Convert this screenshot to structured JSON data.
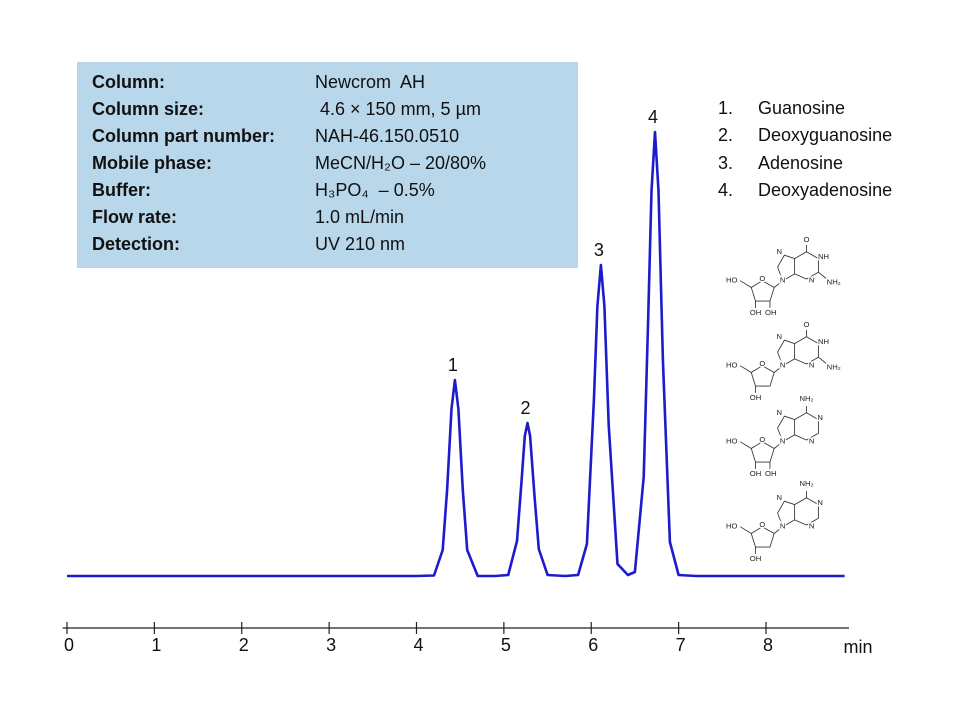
{
  "chart_data": {
    "type": "line",
    "xlabel": "min",
    "x": [
      0,
      1,
      2,
      3,
      4,
      4.2,
      4.3,
      4.35,
      4.4,
      4.44,
      4.48,
      4.53,
      4.58,
      4.7,
      4.9,
      5.05,
      5.15,
      5.2,
      5.24,
      5.27,
      5.3,
      5.35,
      5.4,
      5.5,
      5.7,
      5.85,
      5.95,
      6.03,
      6.07,
      6.11,
      6.15,
      6.2,
      6.3,
      6.42,
      6.5,
      6.6,
      6.65,
      6.69,
      6.73,
      6.77,
      6.82,
      6.9,
      7.0,
      7.2,
      7.5,
      8,
      8.9
    ],
    "values": [
      0,
      0,
      0,
      0,
      0,
      0.5,
      26,
      86,
      167,
      196,
      167,
      86,
      26,
      0,
      0,
      1,
      35,
      93,
      140,
      153,
      140,
      80,
      27,
      1,
      0,
      1,
      32,
      176,
      270,
      311,
      270,
      151,
      12,
      1,
      4,
      99,
      251,
      385,
      444,
      385,
      216,
      34,
      1,
      0,
      0,
      0,
      0
    ],
    "color": "#1c1ccc",
    "xlim": [
      -0.05,
      8.95
    ],
    "xticks": [
      0,
      1,
      2,
      3,
      4,
      5,
      6,
      7,
      8
    ],
    "ylim": [
      0,
      500
    ],
    "peaks": {
      "labels": [
        "1",
        "2",
        "3",
        "4"
      ],
      "x": [
        4.44,
        5.27,
        6.11,
        6.73
      ]
    }
  },
  "info_box": [
    {
      "key": "Column:",
      "value": "Newcrom  AH"
    },
    {
      "key": "Column size:",
      "value": " 4.6 × 150 mm, 5 µm"
    },
    {
      "key": "Column part number:",
      "value": "NAH-46.150.0510"
    },
    {
      "key": "Mobile phase:",
      "value": "MeCN/H₂O – 20/80%"
    },
    {
      "key": "Buffer:",
      "value": "H₃PO₄  – 0.5%"
    },
    {
      "key": "Flow rate:",
      "value": "1.0 mL/min"
    },
    {
      "key": "Detection:",
      "value": "UV 210 nm"
    }
  ],
  "compounds": [
    {
      "number": "1.",
      "name": "Guanosine"
    },
    {
      "number": "2.",
      "name": "Deoxyguanosine"
    },
    {
      "number": "3.",
      "name": "Adenosine"
    },
    {
      "number": "4.",
      "name": "Deoxyadenosine"
    }
  ],
  "structures": [
    {
      "base": "guanine",
      "labels": [
        "O",
        "N",
        "NH",
        "N",
        "NH₂",
        "N",
        "HO",
        "O",
        "OH",
        "OH"
      ]
    },
    {
      "base": "guanine",
      "labels": [
        "O",
        "N",
        "NH",
        "N",
        "NH₂",
        "N",
        "HO",
        "O",
        "OH"
      ]
    },
    {
      "base": "adenine",
      "labels": [
        "NH₂",
        "N",
        "N",
        "N",
        "N",
        "HO",
        "O",
        "OH",
        "OH"
      ]
    },
    {
      "base": "adenine",
      "labels": [
        "NH₂",
        "N",
        "N",
        "N",
        "N",
        "HO",
        "O",
        "OH"
      ]
    }
  ]
}
